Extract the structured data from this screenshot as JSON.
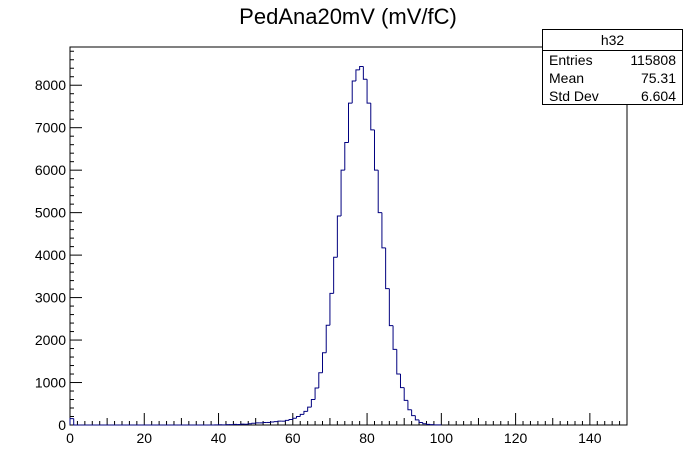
{
  "chart_data": {
    "type": "histogram",
    "title": "PedAna20mV (mV/fC)",
    "xlabel": "",
    "ylabel": "",
    "xlim": [
      0,
      150
    ],
    "ylim": [
      0,
      8900
    ],
    "xticks": [
      0,
      20,
      40,
      60,
      80,
      100,
      120,
      140
    ],
    "yticks": [
      0,
      1000,
      2000,
      3000,
      4000,
      5000,
      6000,
      7000,
      8000
    ],
    "bin_width": 1,
    "line_color": "#00007f",
    "grid": false,
    "bin_starts": [
      0,
      1,
      2,
      3,
      4,
      5,
      6,
      7,
      8,
      9,
      10,
      11,
      12,
      13,
      14,
      15,
      16,
      17,
      18,
      19,
      20,
      21,
      22,
      23,
      24,
      25,
      26,
      27,
      28,
      29,
      30,
      31,
      32,
      33,
      34,
      35,
      36,
      37,
      38,
      39,
      40,
      41,
      42,
      43,
      44,
      45,
      46,
      47,
      48,
      49,
      50,
      51,
      52,
      53,
      54,
      55,
      56,
      57,
      58,
      59,
      60,
      61,
      62,
      63,
      64,
      65,
      66,
      67,
      68,
      69,
      70,
      71,
      72,
      73,
      74,
      75,
      76,
      77,
      78,
      79,
      80,
      81,
      82,
      83,
      84,
      85,
      86,
      87,
      88,
      89,
      90,
      91,
      92,
      93,
      94,
      95,
      96,
      97,
      98,
      99
    ],
    "values": [
      150,
      0,
      0,
      0,
      0,
      0,
      0,
      0,
      0,
      0,
      0,
      0,
      0,
      0,
      0,
      0,
      0,
      0,
      0,
      0,
      0,
      0,
      0,
      0,
      0,
      0,
      0,
      0,
      0,
      0,
      0,
      0,
      0,
      0,
      0,
      0,
      0,
      0,
      0,
      2,
      5,
      4,
      8,
      10,
      15,
      12,
      20,
      18,
      30,
      40,
      50,
      50,
      60,
      60,
      70,
      80,
      90,
      90,
      110,
      130,
      160,
      200,
      250,
      320,
      420,
      600,
      870,
      1230,
      1700,
      2350,
      3100,
      3950,
      4920,
      6000,
      6650,
      7580,
      8100,
      8360,
      8440,
      8140,
      7580,
      6950,
      6000,
      5000,
      4170,
      3210,
      2340,
      1780,
      1200,
      880,
      580,
      360,
      220,
      120,
      60,
      30,
      15,
      8,
      4,
      2
    ]
  },
  "stats": {
    "name": "h32",
    "rows": [
      {
        "label": "Entries",
        "value": "115808"
      },
      {
        "label": "Mean",
        "value": "75.31"
      },
      {
        "label": "Std Dev",
        "value": "6.604"
      }
    ]
  }
}
